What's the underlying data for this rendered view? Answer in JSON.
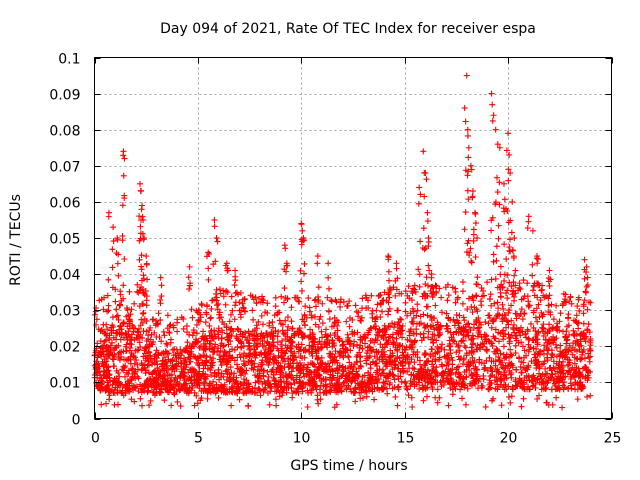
{
  "chart_data": {
    "type": "scatter",
    "title": "Day 094 of 2021, Rate Of TEC Index for receiver espa",
    "xlabel": "GPS time / hours",
    "ylabel": "ROTI / TECUs",
    "xlim": [
      0,
      25
    ],
    "ylim": [
      0,
      0.1
    ],
    "x_ticks": [
      0,
      5,
      10,
      15,
      20,
      25
    ],
    "x_tick_labels": [
      "0",
      "5",
      "10",
      "15",
      "20",
      "25"
    ],
    "y_ticks": [
      0,
      0.01,
      0.02,
      0.03,
      0.04,
      0.05,
      0.06,
      0.07,
      0.08,
      0.09,
      0.1
    ],
    "y_tick_labels": [
      "0",
      "0.01",
      "0.02",
      "0.03",
      "0.04",
      "0.05",
      "0.06",
      "0.07",
      "0.08",
      "0.09",
      "0.1"
    ],
    "grid": true,
    "marker": "plus",
    "color": "#ff0000",
    "x_data_range": [
      0,
      24
    ],
    "series": [
      {
        "name": "ROTI",
        "band": [
          [
            0.0,
            0.008,
            0.022
          ],
          [
            1.0,
            0.007,
            0.026
          ],
          [
            2.0,
            0.007,
            0.028
          ],
          [
            3.0,
            0.007,
            0.02
          ],
          [
            4.0,
            0.007,
            0.018
          ],
          [
            5.0,
            0.007,
            0.022
          ],
          [
            6.0,
            0.007,
            0.026
          ],
          [
            7.0,
            0.007,
            0.025
          ],
          [
            8.0,
            0.007,
            0.024
          ],
          [
            9.0,
            0.007,
            0.025
          ],
          [
            10.0,
            0.007,
            0.024
          ],
          [
            11.0,
            0.007,
            0.024
          ],
          [
            12.0,
            0.007,
            0.023
          ],
          [
            13.0,
            0.007,
            0.024
          ],
          [
            14.0,
            0.008,
            0.026
          ],
          [
            15.0,
            0.008,
            0.027
          ],
          [
            16.0,
            0.008,
            0.027
          ],
          [
            17.0,
            0.008,
            0.027
          ],
          [
            18.0,
            0.008,
            0.028
          ],
          [
            19.0,
            0.008,
            0.028
          ],
          [
            20.0,
            0.008,
            0.03
          ],
          [
            21.0,
            0.008,
            0.029
          ],
          [
            22.0,
            0.008,
            0.026
          ],
          [
            23.0,
            0.008,
            0.024
          ],
          [
            24.0,
            0.008,
            0.024
          ]
        ],
        "peaks": [
          [
            0.7,
            0.057
          ],
          [
            0.9,
            0.053
          ],
          [
            1.1,
            0.05
          ],
          [
            1.4,
            0.074
          ],
          [
            1.45,
            0.072
          ],
          [
            2.2,
            0.065
          ],
          [
            2.25,
            0.063
          ],
          [
            2.3,
            0.059
          ],
          [
            2.35,
            0.055
          ],
          [
            2.4,
            0.05
          ],
          [
            2.5,
            0.045
          ],
          [
            3.2,
            0.039
          ],
          [
            4.6,
            0.042
          ],
          [
            5.5,
            0.046
          ],
          [
            5.8,
            0.055
          ],
          [
            5.9,
            0.05
          ],
          [
            6.4,
            0.043
          ],
          [
            6.8,
            0.041
          ],
          [
            9.2,
            0.048
          ],
          [
            9.3,
            0.043
          ],
          [
            10.0,
            0.054
          ],
          [
            10.05,
            0.052
          ],
          [
            10.1,
            0.05
          ],
          [
            10.8,
            0.045
          ],
          [
            11.3,
            0.043
          ],
          [
            14.2,
            0.045
          ],
          [
            14.6,
            0.043
          ],
          [
            15.7,
            0.064
          ],
          [
            15.9,
            0.074
          ],
          [
            16.0,
            0.068
          ],
          [
            16.1,
            0.057
          ],
          [
            16.15,
            0.05
          ],
          [
            16.3,
            0.04
          ],
          [
            17.9,
            0.086
          ],
          [
            18.0,
            0.095
          ],
          [
            18.05,
            0.08
          ],
          [
            18.1,
            0.075
          ],
          [
            18.2,
            0.07
          ],
          [
            18.3,
            0.063
          ],
          [
            18.4,
            0.057
          ],
          [
            18.5,
            0.05
          ],
          [
            19.2,
            0.09
          ],
          [
            19.3,
            0.084
          ],
          [
            19.4,
            0.08
          ],
          [
            19.5,
            0.076
          ],
          [
            19.6,
            0.075
          ],
          [
            19.8,
            0.065
          ],
          [
            19.9,
            0.058
          ],
          [
            20.0,
            0.079
          ],
          [
            20.05,
            0.073
          ],
          [
            20.1,
            0.068
          ],
          [
            20.2,
            0.06
          ],
          [
            20.3,
            0.05
          ],
          [
            21.0,
            0.056
          ],
          [
            21.2,
            0.052
          ],
          [
            21.4,
            0.045
          ],
          [
            22.0,
            0.041
          ],
          [
            23.7,
            0.044
          ],
          [
            23.8,
            0.042
          ]
        ]
      }
    ]
  }
}
